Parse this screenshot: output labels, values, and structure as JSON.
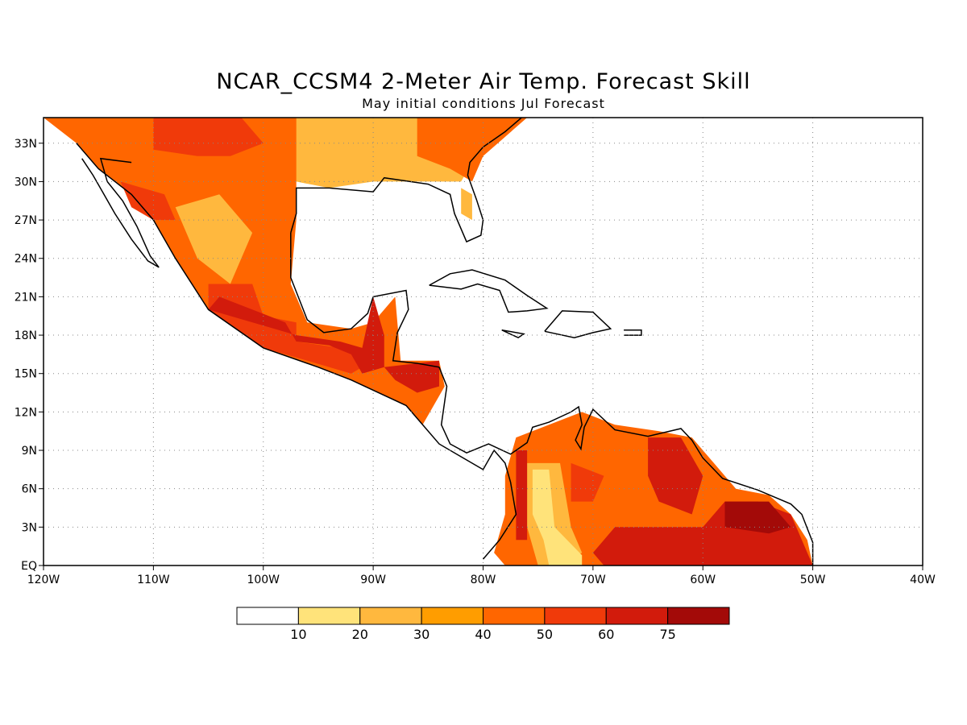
{
  "title": "NCAR_CCSM4 2-Meter Air Temp. Forecast Skill",
  "subtitle": "May initial conditions  Jul Forecast",
  "map": {
    "lon_range": [
      -120,
      -40
    ],
    "lat_range": [
      0,
      35
    ],
    "grid": true,
    "lat_ticks": [
      {
        "value": 33,
        "label": "33N"
      },
      {
        "value": 30,
        "label": "30N"
      },
      {
        "value": 27,
        "label": "27N"
      },
      {
        "value": 24,
        "label": "24N"
      },
      {
        "value": 21,
        "label": "21N"
      },
      {
        "value": 18,
        "label": "18N"
      },
      {
        "value": 15,
        "label": "15N"
      },
      {
        "value": 12,
        "label": "12N"
      },
      {
        "value": 9,
        "label": "9N"
      },
      {
        "value": 6,
        "label": "6N"
      },
      {
        "value": 3,
        "label": "3N"
      },
      {
        "value": 0,
        "label": "EQ"
      }
    ],
    "lon_ticks": [
      {
        "value": -120,
        "label": "120W"
      },
      {
        "value": -110,
        "label": "110W"
      },
      {
        "value": -100,
        "label": "100W"
      },
      {
        "value": -90,
        "label": "90W"
      },
      {
        "value": -80,
        "label": "80W"
      },
      {
        "value": -70,
        "label": "70W"
      },
      {
        "value": -60,
        "label": "60W"
      },
      {
        "value": -50,
        "label": "50W"
      },
      {
        "value": -40,
        "label": "40W"
      }
    ]
  },
  "legend": {
    "colors": [
      "#ffffff",
      "#ffe37a",
      "#ffb83e",
      "#ff9d00",
      "#ff6600",
      "#f03a0a",
      "#d21b0c",
      "#a30a08"
    ],
    "labels": [
      "10",
      "20",
      "30",
      "40",
      "50",
      "60",
      "75"
    ]
  },
  "chart_data": {
    "type": "heatmap",
    "title": "NCAR_CCSM4 2-Meter Air Temp. Forecast Skill",
    "subtitle": "May initial conditions  Jul Forecast",
    "xlim": [
      -120,
      -40
    ],
    "ylim": [
      0,
      35
    ],
    "levels": [
      10,
      20,
      30,
      40,
      50,
      60,
      75
    ],
    "regions": [
      {
        "name": "",
        "level": 40,
        "poly": [
          [
            -120,
            35
          ],
          [
            -93,
            35
          ],
          [
            -92,
            33
          ],
          [
            -97,
            30
          ],
          [
            -97,
            27
          ],
          [
            -97.5,
            22
          ],
          [
            -96,
            19
          ],
          [
            -92,
            18.5
          ],
          [
            -90,
            19
          ],
          [
            -88,
            21
          ],
          [
            -87.5,
            16
          ],
          [
            -84,
            16
          ],
          [
            -83.5,
            14
          ],
          [
            -85.5,
            11
          ],
          [
            -87,
            12.5
          ],
          [
            -92,
            14.5
          ],
          [
            -95,
            15.5
          ],
          [
            -100,
            17
          ],
          [
            -105,
            20
          ],
          [
            -108,
            24
          ],
          [
            -110,
            27
          ],
          [
            -112,
            29
          ],
          [
            -115,
            31
          ],
          [
            -117,
            33
          ]
        ]
      },
      {
        "name": "",
        "level": 20,
        "poly": [
          [
            -108,
            28
          ],
          [
            -104,
            29
          ],
          [
            -101,
            26
          ],
          [
            -103,
            22
          ],
          [
            -106,
            24
          ]
        ]
      },
      {
        "name": "",
        "level": 20,
        "poly": [
          [
            -97,
            35
          ],
          [
            -78,
            35
          ],
          [
            -80,
            33
          ],
          [
            -82,
            30
          ],
          [
            -85,
            30
          ],
          [
            -90,
            30
          ],
          [
            -94,
            29.5
          ],
          [
            -97,
            30
          ]
        ]
      },
      {
        "name": "",
        "level": 40,
        "poly": [
          [
            -86,
            35
          ],
          [
            -76,
            35
          ],
          [
            -80,
            32
          ],
          [
            -81,
            30
          ],
          [
            -83,
            31
          ],
          [
            -86,
            32
          ]
        ]
      },
      {
        "name": "",
        "level": 20,
        "poly": [
          [
            -82,
            29.5
          ],
          [
            -81,
            29
          ],
          [
            -81,
            27
          ],
          [
            -82,
            27.5
          ]
        ]
      },
      {
        "name": "",
        "level": 50,
        "poly": [
          [
            -110,
            35
          ],
          [
            -102,
            35
          ],
          [
            -100,
            33
          ],
          [
            -103,
            32
          ],
          [
            -106,
            32
          ],
          [
            -110,
            32.5
          ]
        ]
      },
      {
        "name": "",
        "level": 50,
        "poly": [
          [
            -113,
            30
          ],
          [
            -109,
            29
          ],
          [
            -108,
            27
          ],
          [
            -110,
            27
          ],
          [
            -112,
            28
          ]
        ]
      },
      {
        "name": "",
        "level": 50,
        "poly": [
          [
            -105,
            22
          ],
          [
            -101,
            22
          ],
          [
            -100,
            19.5
          ],
          [
            -97,
            19
          ],
          [
            -97,
            17.5
          ],
          [
            -93,
            17
          ],
          [
            -90,
            16
          ],
          [
            -92,
            15
          ],
          [
            -96,
            16
          ],
          [
            -100,
            17
          ],
          [
            -105,
            20
          ]
        ]
      },
      {
        "name": "",
        "level": 60,
        "poly": [
          [
            -104,
            21
          ],
          [
            -101,
            20
          ],
          [
            -98,
            19
          ],
          [
            -97,
            17.5
          ],
          [
            -94,
            17.2
          ],
          [
            -92,
            16.5
          ],
          [
            -91,
            15
          ],
          [
            -89,
            15.5
          ],
          [
            -89,
            18
          ],
          [
            -90,
            21
          ],
          [
            -91,
            17
          ],
          [
            -93,
            17.5
          ],
          [
            -97,
            18
          ],
          [
            -99,
            18.5
          ],
          [
            -103,
            19.5
          ],
          [
            -105,
            20
          ]
        ]
      },
      {
        "name": "",
        "level": 60,
        "poly": [
          [
            -89,
            15.5
          ],
          [
            -84,
            16
          ],
          [
            -84,
            14
          ],
          [
            -86,
            13.5
          ],
          [
            -88,
            14.5
          ]
        ]
      },
      {
        "name": "",
        "level": 40,
        "poly": [
          [
            -77,
            10
          ],
          [
            -74,
            11
          ],
          [
            -71,
            12
          ],
          [
            -68,
            11
          ],
          [
            -64,
            10.5
          ],
          [
            -61,
            10
          ],
          [
            -59,
            8
          ],
          [
            -57,
            6
          ],
          [
            -54,
            5.5
          ],
          [
            -52,
            4
          ],
          [
            -50.5,
            2
          ],
          [
            -50,
            0
          ],
          [
            -78,
            0
          ],
          [
            -79,
            1
          ],
          [
            -78,
            4
          ],
          [
            -78,
            7
          ]
        ]
      },
      {
        "name": "",
        "level": 20,
        "poly": [
          [
            -76,
            8
          ],
          [
            -73,
            8
          ],
          [
            -72,
            3
          ],
          [
            -71,
            1
          ],
          [
            -73,
            0
          ],
          [
            -75,
            0
          ],
          [
            -76,
            3
          ]
        ]
      },
      {
        "name": "",
        "level": 10,
        "poly": [
          [
            -75.5,
            7.5
          ],
          [
            -74,
            7.5
          ],
          [
            -73.5,
            3
          ],
          [
            -71,
            0.8
          ],
          [
            -71,
            0
          ],
          [
            -74,
            0
          ],
          [
            -74.5,
            2
          ],
          [
            -75.5,
            4
          ]
        ]
      },
      {
        "name": "",
        "level": 60,
        "poly": [
          [
            -77,
            9
          ],
          [
            -76,
            9
          ],
          [
            -76,
            2
          ],
          [
            -77,
            2
          ]
        ]
      },
      {
        "name": "",
        "level": 50,
        "poly": [
          [
            -72,
            8
          ],
          [
            -69,
            7
          ],
          [
            -70,
            5
          ],
          [
            -72,
            5
          ]
        ]
      },
      {
        "name": "",
        "level": 60,
        "poly": [
          [
            -65,
            10
          ],
          [
            -62,
            10
          ],
          [
            -60,
            7
          ],
          [
            -61,
            4
          ],
          [
            -64,
            5
          ],
          [
            -65,
            7
          ]
        ]
      },
      {
        "name": "",
        "level": 60,
        "poly": [
          [
            -68,
            3
          ],
          [
            -60,
            3
          ],
          [
            -58,
            5
          ],
          [
            -55,
            5
          ],
          [
            -52,
            4
          ],
          [
            -51,
            2
          ],
          [
            -50,
            0
          ],
          [
            -69,
            0
          ],
          [
            -70,
            1
          ]
        ]
      },
      {
        "name": "",
        "level": 75,
        "poly": [
          [
            -58,
            5
          ],
          [
            -54,
            5
          ],
          [
            -52,
            3
          ],
          [
            -54,
            2.5
          ],
          [
            -58,
            3
          ]
        ]
      }
    ]
  }
}
